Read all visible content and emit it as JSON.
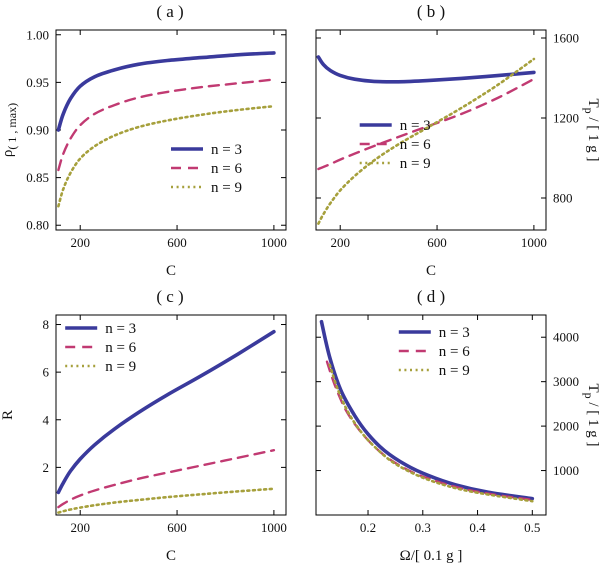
{
  "figure": {
    "background": "#ffffff",
    "frame_color": "#000000"
  },
  "chart_data": [
    {
      "id": "a",
      "type": "line",
      "title": "( a )",
      "xlabel": "C",
      "ylabel": "ρ( 1 , max)",
      "ylabel_parts": [
        {
          "t": "ρ",
          "sub": false
        },
        {
          "t": "( 1 , max)",
          "sub": true
        }
      ],
      "ylabel_side": "left",
      "xlim": [
        100,
        1050
      ],
      "ylim": [
        0.795,
        1.005
      ],
      "xticks": [
        200,
        600,
        1000
      ],
      "xticklabels": [
        "200",
        "600",
        "1000"
      ],
      "yticks": [
        0.8,
        0.85,
        0.9,
        0.95,
        1.0
      ],
      "yticklabels": [
        "0.80",
        "0.85",
        "0.90",
        "0.95",
        "1.00"
      ],
      "grid": false,
      "legend": {
        "fx": 0.5,
        "fy": 0.55
      },
      "series": [
        {
          "name": "n = 3",
          "color": "#3a3a9c",
          "width": 3.6,
          "dash": "",
          "x": [
            110,
            130,
            160,
            200,
            260,
            340,
            440,
            560,
            700,
            850,
            1000
          ],
          "y": [
            0.9,
            0.917,
            0.933,
            0.946,
            0.956,
            0.963,
            0.969,
            0.973,
            0.976,
            0.979,
            0.981
          ]
        },
        {
          "name": "n = 6",
          "color": "#c13a72",
          "width": 2.4,
          "dash": "10,7",
          "x": [
            110,
            130,
            160,
            200,
            260,
            340,
            440,
            560,
            700,
            850,
            1000
          ],
          "y": [
            0.858,
            0.875,
            0.891,
            0.905,
            0.917,
            0.926,
            0.934,
            0.94,
            0.945,
            0.949,
            0.953
          ]
        },
        {
          "name": "n = 9",
          "color": "#a6a03c",
          "width": 2.6,
          "dash": "2,3.6",
          "x": [
            110,
            130,
            160,
            200,
            260,
            340,
            440,
            560,
            700,
            850,
            1000
          ],
          "y": [
            0.82,
            0.838,
            0.855,
            0.87,
            0.883,
            0.894,
            0.903,
            0.91,
            0.916,
            0.921,
            0.925
          ]
        }
      ]
    },
    {
      "id": "b",
      "type": "line",
      "title": "( b )",
      "xlabel": "C",
      "ylabel": "Tp / [ 1 g ]",
      "ylabel_parts": [
        {
          "t": "T",
          "sub": false
        },
        {
          "t": "p",
          "sub": true
        },
        {
          "t": " / [ 1 g ]",
          "sub": false
        }
      ],
      "ylabel_side": "right",
      "xlim": [
        100,
        1050
      ],
      "ylim": [
        640,
        1640
      ],
      "xticks": [
        200,
        600,
        1000
      ],
      "xticklabels": [
        "200",
        "600",
        "1000"
      ],
      "yticks": [
        800,
        1200,
        1600
      ],
      "yticklabels": [
        "800",
        "1200",
        "1600"
      ],
      "grid": false,
      "legend": {
        "fx": 0.19,
        "fy": 0.43
      },
      "series": [
        {
          "name": "n = 3",
          "color": "#3a3a9c",
          "width": 3.6,
          "dash": "",
          "x": [
            110,
            130,
            160,
            200,
            260,
            340,
            440,
            560,
            700,
            850,
            1000
          ],
          "y": [
            1505,
            1468,
            1437,
            1413,
            1394,
            1383,
            1381,
            1387,
            1398,
            1412,
            1428
          ]
        },
        {
          "name": "n = 6",
          "color": "#c13a72",
          "width": 2.4,
          "dash": "10,7",
          "x": [
            110,
            130,
            160,
            200,
            260,
            340,
            440,
            560,
            700,
            850,
            1000
          ],
          "y": [
            945,
            955,
            970,
            992,
            1022,
            1060,
            1105,
            1158,
            1220,
            1300,
            1395
          ]
        },
        {
          "name": "n = 9",
          "color": "#a6a03c",
          "width": 2.6,
          "dash": "2,3.6",
          "x": [
            110,
            130,
            160,
            200,
            260,
            340,
            440,
            560,
            700,
            850,
            1000
          ],
          "y": [
            672,
            718,
            775,
            838,
            910,
            988,
            1068,
            1152,
            1250,
            1365,
            1495
          ]
        }
      ]
    },
    {
      "id": "c",
      "type": "line",
      "title": "( c )",
      "xlabel": "C",
      "ylabel": "R",
      "ylabel_parts": [
        {
          "t": "R",
          "sub": false
        }
      ],
      "ylabel_side": "left",
      "xlim": [
        100,
        1050
      ],
      "ylim": [
        0,
        8.4
      ],
      "xticks": [
        200,
        600,
        1000
      ],
      "xticklabels": [
        "200",
        "600",
        "1000"
      ],
      "yticks": [
        2,
        4,
        6,
        8
      ],
      "yticklabels": [
        "2",
        "4",
        "6",
        "8"
      ],
      "grid": false,
      "legend": {
        "fx": 0.04,
        "fy": 0.02
      },
      "series": [
        {
          "name": "n = 3",
          "color": "#3a3a9c",
          "width": 3.6,
          "dash": "",
          "x": [
            110,
            130,
            160,
            200,
            260,
            340,
            440,
            560,
            700,
            850,
            1000
          ],
          "y": [
            0.95,
            1.35,
            1.85,
            2.35,
            2.95,
            3.6,
            4.3,
            5.05,
            5.85,
            6.75,
            7.7
          ]
        },
        {
          "name": "n = 6",
          "color": "#c13a72",
          "width": 2.4,
          "dash": "10,7",
          "x": [
            110,
            130,
            160,
            200,
            260,
            340,
            440,
            560,
            700,
            850,
            1000
          ],
          "y": [
            0.33,
            0.47,
            0.64,
            0.82,
            1.03,
            1.26,
            1.52,
            1.78,
            2.08,
            2.4,
            2.72
          ]
        },
        {
          "name": "n = 9",
          "color": "#a6a03c",
          "width": 2.6,
          "dash": "2,3.6",
          "x": [
            110,
            130,
            160,
            200,
            260,
            340,
            440,
            560,
            700,
            850,
            1000
          ],
          "y": [
            0.1,
            0.16,
            0.23,
            0.31,
            0.41,
            0.52,
            0.63,
            0.75,
            0.87,
            0.99,
            1.1
          ]
        }
      ]
    },
    {
      "id": "d",
      "type": "line",
      "title": "( d )",
      "xlabel": "Ω/[ 0.1 g ]",
      "ylabel": "Tp / [ 1 g ]",
      "ylabel_parts": [
        {
          "t": "T",
          "sub": false
        },
        {
          "t": "p",
          "sub": true
        },
        {
          "t": " / [ 1 g ]",
          "sub": false
        }
      ],
      "ylabel_side": "right",
      "xlim": [
        0.105,
        0.525
      ],
      "ylim": [
        0,
        4500
      ],
      "xticks": [
        0.2,
        0.3,
        0.4,
        0.5
      ],
      "xticklabels": [
        "0.2",
        "0.3",
        "0.4",
        "0.5"
      ],
      "yticks": [
        1000,
        2000,
        3000,
        4000
      ],
      "yticklabels": [
        "1000",
        "2000",
        "3000",
        "4000"
      ],
      "grid": false,
      "legend": {
        "fx": 0.36,
        "fy": 0.04
      },
      "series": [
        {
          "name": "n = 3",
          "color": "#3a3a9c",
          "width": 3.6,
          "dash": "",
          "x": [
            0.115,
            0.13,
            0.15,
            0.175,
            0.2,
            0.23,
            0.27,
            0.31,
            0.36,
            0.42,
            0.5
          ],
          "y": [
            4350,
            3550,
            2820,
            2250,
            1820,
            1450,
            1120,
            890,
            680,
            510,
            370
          ]
        },
        {
          "name": "n = 6",
          "color": "#c13a72",
          "width": 2.4,
          "dash": "10,7",
          "x": [
            0.125,
            0.14,
            0.16,
            0.185,
            0.21,
            0.24,
            0.28,
            0.32,
            0.37,
            0.43,
            0.5
          ],
          "y": [
            3450,
            2900,
            2350,
            1900,
            1560,
            1250,
            970,
            780,
            600,
            460,
            340
          ]
        },
        {
          "name": "n = 9",
          "color": "#a6a03c",
          "width": 2.6,
          "dash": "2,3.6",
          "x": [
            0.13,
            0.145,
            0.165,
            0.19,
            0.215,
            0.245,
            0.285,
            0.325,
            0.375,
            0.435,
            0.5
          ],
          "y": [
            3380,
            2820,
            2280,
            1830,
            1500,
            1190,
            920,
            730,
            560,
            430,
            310
          ]
        }
      ]
    }
  ]
}
